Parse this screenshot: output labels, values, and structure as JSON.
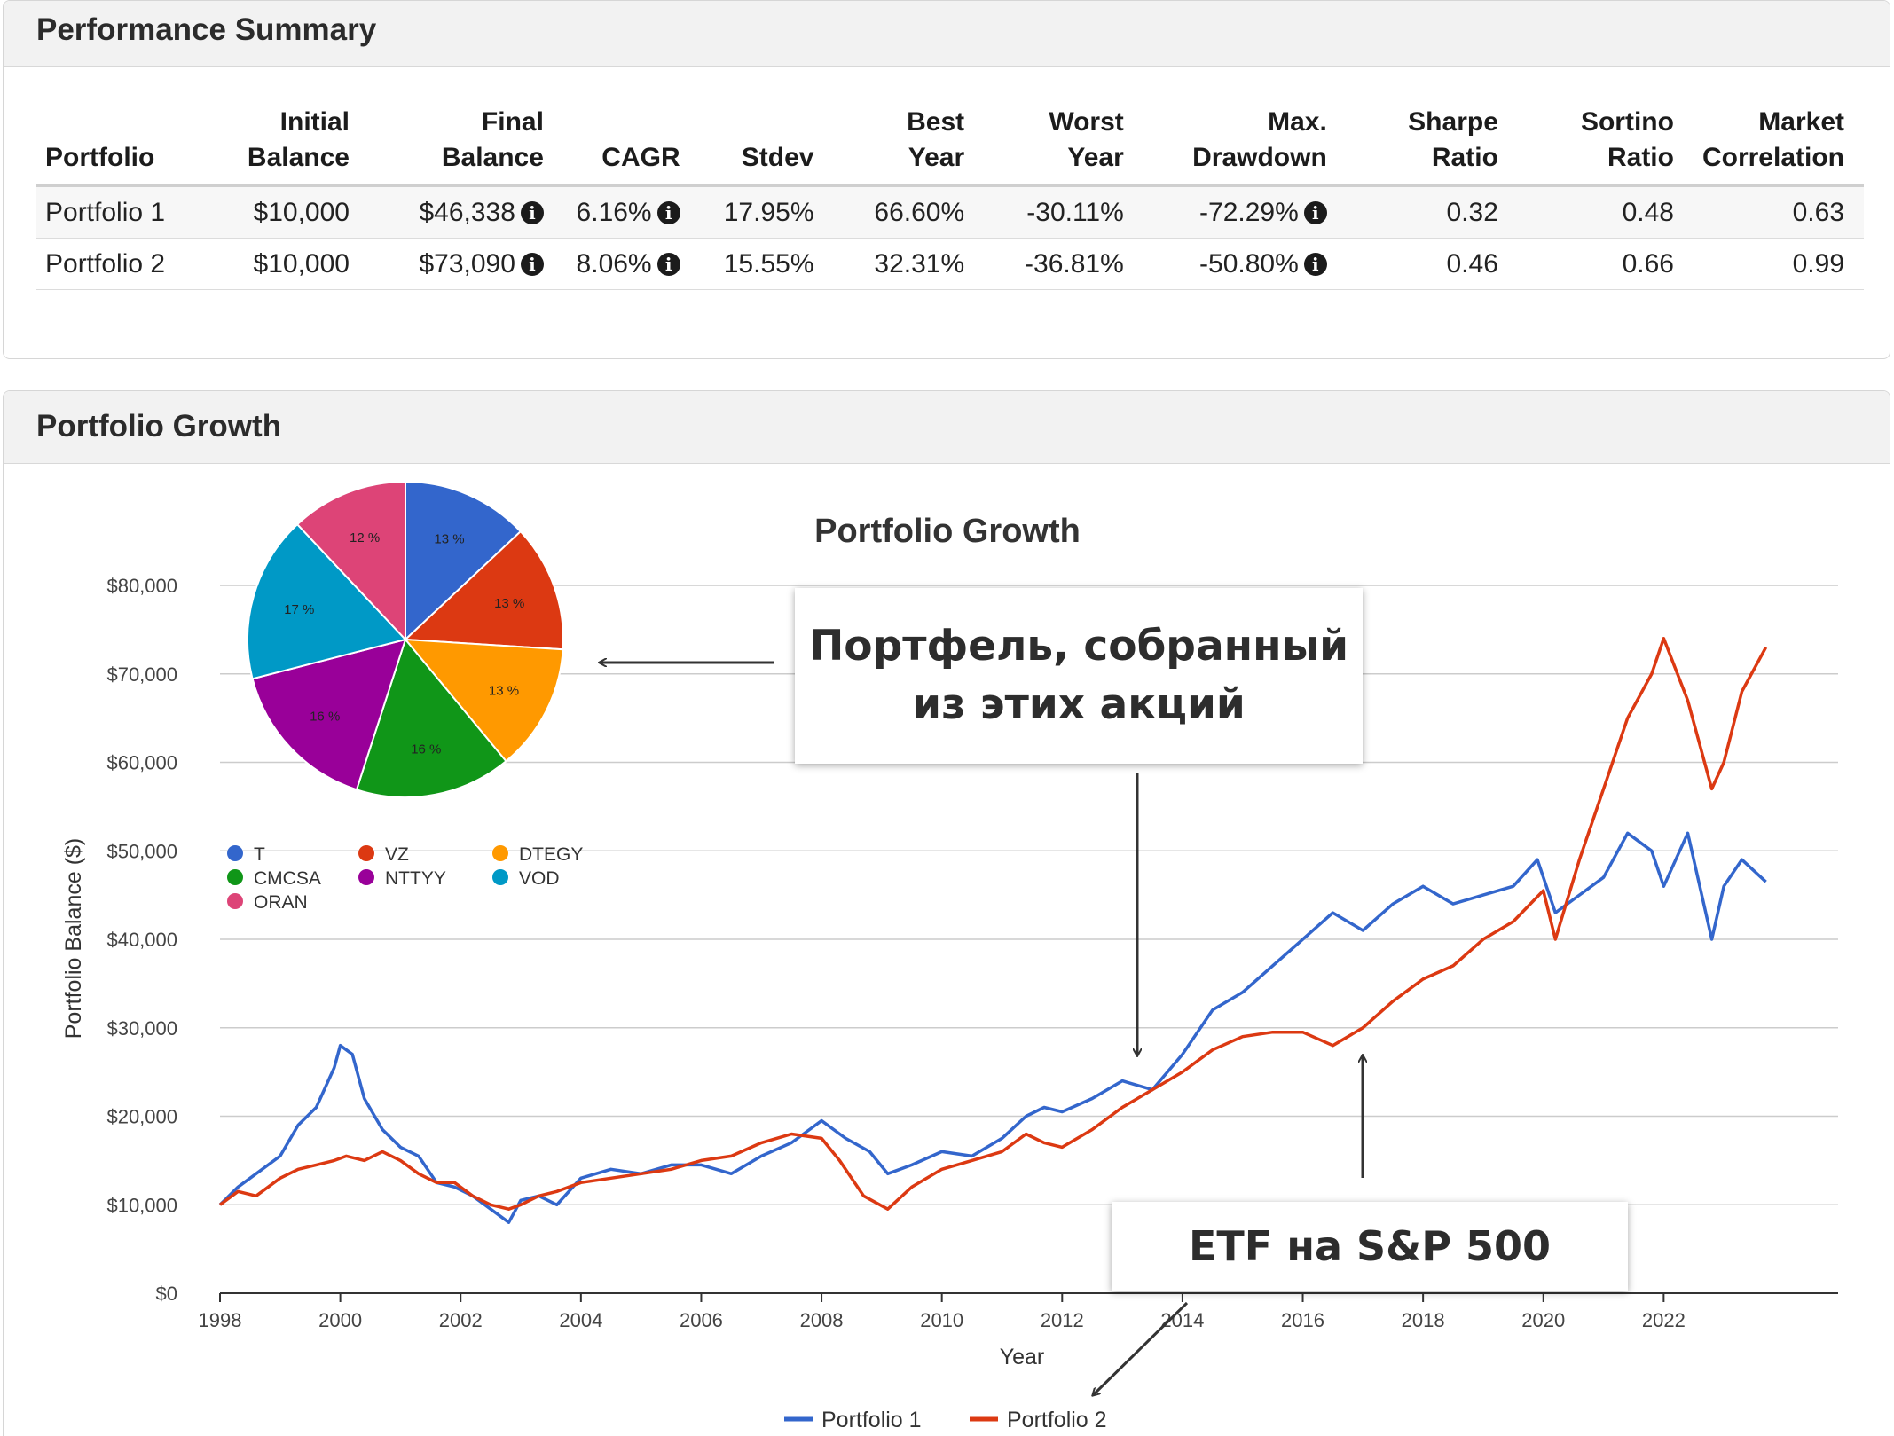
{
  "summary": {
    "title": "Performance Summary",
    "columns": [
      "Portfolio",
      "Initial Balance",
      "Final Balance",
      "CAGR",
      "Stdev",
      "Best Year",
      "Worst Year",
      "Max. Drawdown",
      "Sharpe Ratio",
      "Sortino Ratio",
      "Market Correlation"
    ],
    "rows": [
      {
        "portfolio": "Portfolio 1",
        "initial": "$10,000",
        "final": "$46,338",
        "cagr": "6.16%",
        "stdev": "17.95%",
        "best": "66.60%",
        "worst": "-30.11%",
        "drawdown": "-72.29%",
        "sharpe": "0.32",
        "sortino": "0.48",
        "corr": "0.63"
      },
      {
        "portfolio": "Portfolio 2",
        "initial": "$10,000",
        "final": "$73,090",
        "cagr": "8.06%",
        "stdev": "15.55%",
        "best": "32.31%",
        "worst": "-36.81%",
        "drawdown": "-50.80%",
        "sharpe": "0.46",
        "sortino": "0.66",
        "corr": "0.99"
      }
    ]
  },
  "growth": {
    "title": "Portfolio Growth",
    "callouts": {
      "top": [
        "Портфель, собранный",
        "из этих акций"
      ],
      "bottom": "ETF на S&P 500"
    }
  },
  "chart_data": [
    {
      "type": "line",
      "title": "Portfolio Growth",
      "xlabel": "Year",
      "ylabel": "Portfolio Balance ($)",
      "xlim": [
        1998,
        2023.7
      ],
      "ylim": [
        0,
        80000
      ],
      "x_ticks": [
        "1998",
        "2000",
        "2002",
        "2004",
        "2006",
        "2008",
        "2010",
        "2012",
        "2014",
        "2016",
        "2018",
        "2020",
        "2022"
      ],
      "y_ticks": [
        "$0",
        "$10,000",
        "$20,000",
        "$30,000",
        "$40,000",
        "$50,000",
        "$60,000",
        "$70,000",
        "$80,000"
      ],
      "legend_position": "bottom",
      "grid": true,
      "series": [
        {
          "name": "Portfolio 1",
          "color": "#3366cc",
          "x": [
            1998.0,
            1998.3,
            1998.6,
            1999.0,
            1999.3,
            1999.6,
            1999.9,
            2000.0,
            2000.2,
            2000.4,
            2000.7,
            2001.0,
            2001.3,
            2001.6,
            2001.9,
            2002.2,
            2002.5,
            2002.8,
            2003.0,
            2003.3,
            2003.6,
            2004.0,
            2004.5,
            2005.0,
            2005.5,
            2006.0,
            2006.5,
            2007.0,
            2007.5,
            2007.8,
            2008.0,
            2008.4,
            2008.8,
            2009.1,
            2009.5,
            2010.0,
            2010.5,
            2011.0,
            2011.4,
            2011.7,
            2012.0,
            2012.5,
            2013.0,
            2013.5,
            2014.0,
            2014.5,
            2015.0,
            2015.5,
            2016.0,
            2016.5,
            2017.0,
            2017.5,
            2018.0,
            2018.5,
            2019.0,
            2019.5,
            2019.9,
            2020.2,
            2020.6,
            2021.0,
            2021.4,
            2021.8,
            2022.0,
            2022.4,
            2022.8,
            2023.0,
            2023.3,
            2023.7
          ],
          "y": [
            10000,
            12000,
            13500,
            15500,
            19000,
            21000,
            25500,
            28000,
            27000,
            22000,
            18500,
            16500,
            15500,
            12500,
            12000,
            11000,
            9500,
            8000,
            10500,
            11000,
            10000,
            13000,
            14000,
            13500,
            14500,
            14500,
            13500,
            15500,
            17000,
            18500,
            19500,
            17500,
            16000,
            13500,
            14500,
            16000,
            15500,
            17500,
            20000,
            21000,
            20500,
            22000,
            24000,
            23000,
            27000,
            32000,
            34000,
            37000,
            40000,
            43000,
            41000,
            44000,
            46000,
            44000,
            45000,
            46000,
            49000,
            43000,
            45000,
            47000,
            52000,
            50000,
            46000,
            52000,
            40000,
            46000,
            49000,
            46500
          ]
        },
        {
          "name": "Portfolio 2",
          "color": "#dc3912",
          "x": [
            1998.0,
            1998.3,
            1998.6,
            1999.0,
            1999.3,
            1999.6,
            1999.9,
            2000.1,
            2000.4,
            2000.7,
            2001.0,
            2001.3,
            2001.6,
            2001.9,
            2002.2,
            2002.5,
            2002.8,
            2003.0,
            2003.3,
            2003.6,
            2004.0,
            2004.5,
            2005.0,
            2005.5,
            2006.0,
            2006.5,
            2007.0,
            2007.5,
            2008.0,
            2008.3,
            2008.7,
            2009.1,
            2009.5,
            2010.0,
            2010.5,
            2011.0,
            2011.4,
            2011.7,
            2012.0,
            2012.5,
            2013.0,
            2013.5,
            2014.0,
            2014.5,
            2015.0,
            2015.5,
            2016.0,
            2016.5,
            2017.0,
            2017.5,
            2018.0,
            2018.5,
            2019.0,
            2019.5,
            2020.0,
            2020.2,
            2020.6,
            2021.0,
            2021.4,
            2021.8,
            2022.0,
            2022.4,
            2022.8,
            2023.0,
            2023.3,
            2023.7
          ],
          "y": [
            10000,
            11500,
            11000,
            13000,
            14000,
            14500,
            15000,
            15500,
            15000,
            16000,
            15000,
            13500,
            12500,
            12500,
            11000,
            10000,
            9500,
            10000,
            11000,
            11500,
            12500,
            13000,
            13500,
            14000,
            15000,
            15500,
            17000,
            18000,
            17500,
            15000,
            11000,
            9500,
            12000,
            14000,
            15000,
            16000,
            18000,
            17000,
            16500,
            18500,
            21000,
            23000,
            25000,
            27500,
            29000,
            29500,
            29500,
            28000,
            30000,
            33000,
            35500,
            37000,
            40000,
            42000,
            45500,
            40000,
            49000,
            57000,
            65000,
            70000,
            74000,
            67000,
            57000,
            60000,
            68000,
            73000
          ]
        }
      ]
    },
    {
      "type": "pie",
      "categories": [
        "T",
        "VZ",
        "DTEGY",
        "CMCSA",
        "NTTYY",
        "VOD",
        "ORAN"
      ],
      "values": [
        13,
        13,
        13,
        16,
        16,
        17,
        12
      ],
      "labels": [
        "13 %",
        "13 %",
        "13 %",
        "16 %",
        "16 %",
        "17 %",
        "12 %"
      ],
      "colors": [
        "#3366cc",
        "#dc3912",
        "#ff9900",
        "#109618",
        "#990099",
        "#0099c6",
        "#dd4477"
      ],
      "legend_position": "bottom"
    }
  ]
}
